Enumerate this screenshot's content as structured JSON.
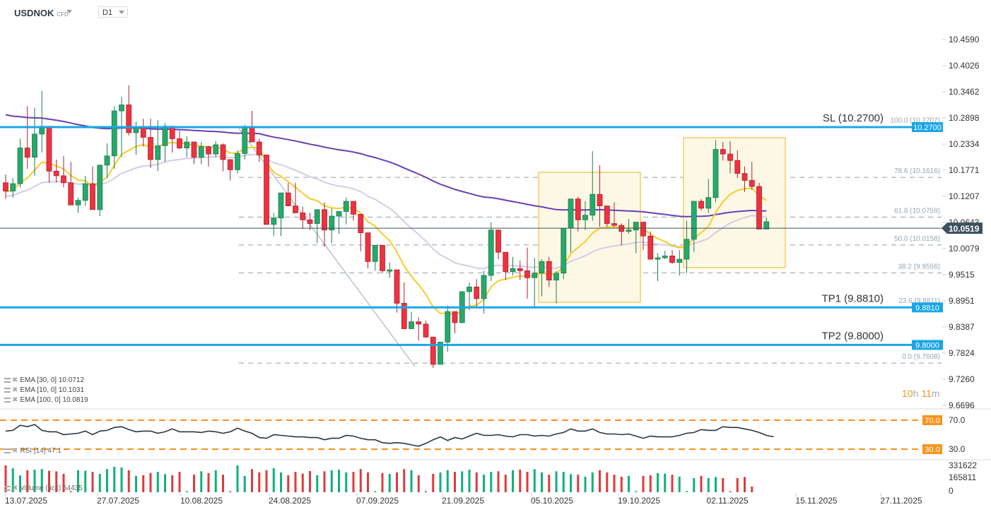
{
  "header": {
    "symbol": "USDNOK",
    "instrument_type": "CFD",
    "timeframe": "D1"
  },
  "price_axis": {
    "ticks": [
      "10.4590",
      "10.4026",
      "10.3462",
      "10.2898",
      "10.2334",
      "10.1771",
      "10.1207",
      "10.0643",
      "10.0079",
      "9.9515",
      "9.8951",
      "9.8387",
      "9.7824",
      "9.7260",
      "9.6696"
    ],
    "current_price": "10.0519"
  },
  "levels": {
    "sl": {
      "label": "SL (10.2700)",
      "tag": "10.2700",
      "value": 10.27
    },
    "tp1": {
      "label": "TP1 (9.8810)",
      "tag": "9.8810",
      "value": 9.881
    },
    "tp2": {
      "label": "TP2 (9.8000)",
      "tag": "9.8000",
      "value": 9.8
    }
  },
  "fibonacci": [
    {
      "label": "100.0 (10.2707)",
      "value": 10.2707
    },
    {
      "label": "78.6 (10.1616)",
      "value": 10.1616
    },
    {
      "label": "61.8 (10.0759)",
      "value": 10.0759
    },
    {
      "label": "50.0 (10.0158)",
      "value": 10.0158
    },
    {
      "label": "38.2 (9.9556)",
      "value": 9.9556
    },
    {
      "label": "23.6 (9.8811)",
      "value": 9.8811
    },
    {
      "label": "0.0 (9.7608)",
      "value": 9.7608
    }
  ],
  "indicators": {
    "ema30": "EMA [30, 0] 10.0712",
    "ema10": "EMA [10, 0] 10.1031",
    "ema100": "EMA [100, 0] 10.0819",
    "rsi": "RSI [14] 47.1",
    "volume": "Volume (tick) 54435"
  },
  "countdown": {
    "hours": "10",
    "h": "h",
    "minutes": "11",
    "m": "m"
  },
  "rsi_axis": {
    "upper": "70.0",
    "lower": "30.0"
  },
  "volume_axis": {
    "max": "331622",
    "mid": "165811",
    "zero": "0"
  },
  "date_axis": [
    "13.07.2025",
    "27.07.2025",
    "10.08.2025",
    "24.08.2025",
    "07.09.2025",
    "21.09.2025",
    "05.10.2025",
    "19.10.2025",
    "02.11.2025",
    "15.11.2025",
    "27.11.2025"
  ],
  "colors": {
    "bull": "#26a96c",
    "bear": "#f0313f",
    "ema10": "#f5cd2a",
    "ema30": "#d6cbe6",
    "ema100": "#6a3fb5",
    "level_line": "#1aa6e8",
    "rsi_band": "#f7931e",
    "price_tag": "#3d5260"
  },
  "chart_data": {
    "type": "candlestick",
    "title": "USDNOK CFD D1",
    "xlabel": "",
    "ylabel": "",
    "ylim": [
      9.6696,
      10.459
    ],
    "x_ticks": [
      "13.07.2025",
      "27.07.2025",
      "10.08.2025",
      "24.08.2025",
      "07.09.2025",
      "21.09.2025",
      "05.10.2025",
      "19.10.2025",
      "02.11.2025",
      "15.11.2025",
      "27.11.2025"
    ],
    "candles": [
      [
        10.15,
        10.168,
        10.115,
        10.132
      ],
      [
        10.132,
        10.16,
        10.118,
        10.148
      ],
      [
        10.148,
        10.245,
        10.14,
        10.225
      ],
      [
        10.225,
        10.315,
        10.18,
        10.205
      ],
      [
        10.205,
        10.312,
        10.165,
        10.255
      ],
      [
        10.255,
        10.348,
        10.215,
        10.272
      ],
      [
        10.272,
        10.235,
        10.15,
        10.175
      ],
      [
        10.175,
        10.2,
        10.15,
        10.165
      ],
      [
        10.165,
        10.208,
        10.14,
        10.15
      ],
      [
        10.15,
        10.195,
        10.115,
        10.102
      ],
      [
        10.102,
        10.118,
        10.085,
        10.112
      ],
      [
        10.112,
        10.165,
        10.1,
        10.148
      ],
      [
        10.148,
        10.185,
        10.098,
        10.092
      ],
      [
        10.092,
        10.165,
        10.078,
        10.188
      ],
      [
        10.188,
        10.235,
        10.16,
        10.208
      ],
      [
        10.208,
        10.315,
        10.18,
        10.305
      ],
      [
        10.305,
        10.335,
        10.205,
        10.318
      ],
      [
        10.318,
        10.36,
        10.252,
        10.258
      ],
      [
        10.258,
        10.282,
        10.21,
        10.268
      ],
      [
        10.268,
        10.288,
        10.228,
        10.248
      ],
      [
        10.248,
        10.288,
        10.182,
        10.2
      ],
      [
        10.2,
        10.285,
        10.175,
        10.23
      ],
      [
        10.23,
        10.278,
        10.195,
        10.272
      ],
      [
        10.272,
        10.268,
        10.215,
        10.245
      ],
      [
        10.245,
        10.262,
        10.222,
        10.225
      ],
      [
        10.225,
        10.25,
        10.205,
        10.238
      ],
      [
        10.238,
        10.235,
        10.19,
        10.205
      ],
      [
        10.205,
        10.238,
        10.19,
        10.228
      ],
      [
        10.228,
        10.23,
        10.185,
        10.212
      ],
      [
        10.212,
        10.24,
        10.205,
        10.232
      ],
      [
        10.232,
        10.235,
        10.175,
        10.2
      ],
      [
        10.2,
        10.175,
        10.155,
        10.178
      ],
      [
        10.178,
        10.22,
        10.17,
        10.213
      ],
      [
        10.213,
        10.275,
        10.2,
        10.27
      ],
      [
        10.27,
        10.305,
        10.25,
        10.238
      ],
      [
        10.238,
        10.245,
        10.195,
        10.21
      ],
      [
        10.21,
        10.185,
        10.075,
        10.06
      ],
      [
        10.06,
        10.085,
        10.035,
        10.074
      ],
      [
        10.074,
        10.128,
        10.035,
        10.128
      ],
      [
        10.128,
        10.15,
        10.1,
        10.1
      ],
      [
        10.1,
        10.15,
        10.095,
        10.085
      ],
      [
        10.085,
        10.098,
        10.05,
        10.07
      ],
      [
        10.07,
        10.085,
        10.048,
        10.062
      ],
      [
        10.062,
        10.085,
        10.02,
        10.092
      ],
      [
        10.092,
        10.108,
        10.012,
        10.048
      ],
      [
        10.048,
        10.095,
        10.02,
        10.078
      ],
      [
        10.078,
        10.085,
        10.04,
        10.088
      ],
      [
        10.088,
        10.118,
        10.06,
        10.11
      ],
      [
        10.11,
        10.11,
        10.068,
        10.082
      ],
      [
        10.082,
        10.042,
        10.002,
        10.042
      ],
      [
        10.042,
        10.022,
        9.965,
        9.98
      ],
      [
        9.98,
        10.015,
        9.96,
        10.015
      ],
      [
        10.015,
        9.998,
        9.955,
        9.96
      ],
      [
        9.96,
        9.978,
        9.945,
        9.962
      ],
      [
        9.962,
        9.935,
        9.87,
        9.89
      ],
      [
        9.89,
        9.935,
        9.835,
        9.835
      ],
      [
        9.835,
        9.872,
        9.84,
        9.85
      ],
      [
        9.85,
        9.86,
        9.81,
        9.845
      ],
      [
        9.845,
        9.852,
        9.815,
        9.817
      ],
      [
        9.817,
        9.8,
        9.75,
        9.758
      ],
      [
        9.758,
        9.805,
        9.76,
        9.806
      ],
      [
        9.806,
        9.885,
        9.785,
        9.872
      ],
      [
        9.872,
        9.86,
        9.825,
        9.848
      ],
      [
        9.848,
        9.915,
        9.862,
        9.915
      ],
      [
        9.915,
        9.935,
        9.875,
        9.925
      ],
      [
        9.925,
        9.942,
        9.88,
        9.9
      ],
      [
        9.9,
        9.96,
        9.868,
        9.95
      ],
      [
        9.95,
        10.065,
        9.938,
        10.048
      ],
      [
        10.048,
        10.03,
        9.985,
        10.0
      ],
      [
        10.0,
        9.988,
        9.94,
        9.958
      ],
      [
        9.958,
        9.99,
        9.95,
        9.965
      ],
      [
        9.965,
        9.982,
        9.94,
        9.96
      ],
      [
        9.96,
        10.01,
        9.9,
        9.945
      ],
      [
        9.945,
        9.988,
        9.88,
        9.955
      ],
      [
        9.955,
        9.985,
        9.905,
        9.98
      ],
      [
        9.98,
        9.99,
        9.925,
        9.94
      ],
      [
        9.94,
        9.96,
        9.89,
        9.955
      ],
      [
        9.955,
        10.035,
        9.942,
        10.052
      ],
      [
        10.052,
        10.115,
        10.0,
        10.115
      ],
      [
        10.115,
        10.12,
        10.045,
        10.07
      ],
      [
        10.07,
        10.11,
        10.048,
        10.08
      ],
      [
        10.08,
        10.218,
        10.068,
        10.125
      ],
      [
        10.125,
        10.188,
        10.055,
        10.1
      ],
      [
        10.1,
        10.08,
        10.055,
        10.062
      ],
      [
        10.062,
        10.108,
        10.055,
        10.058
      ],
      [
        10.058,
        10.062,
        10.015,
        10.045
      ],
      [
        10.045,
        10.072,
        10.04,
        10.048
      ],
      [
        10.048,
        10.055,
        9.998,
        10.065
      ],
      [
        10.065,
        10.05,
        10.005,
        10.035
      ],
      [
        10.035,
        10.045,
        10.0,
        9.985
      ],
      [
        9.985,
        9.998,
        9.938,
        9.988
      ],
      [
        9.988,
        10.003,
        9.985,
        9.992
      ],
      [
        9.992,
        10.005,
        9.975,
        9.978
      ],
      [
        9.978,
        10.005,
        9.95,
        9.985
      ],
      [
        9.985,
        10.068,
        9.955,
        10.028
      ],
      [
        10.028,
        10.11,
        10.0,
        10.11
      ],
      [
        10.11,
        10.115,
        10.09,
        10.095
      ],
      [
        10.095,
        10.158,
        10.085,
        10.118
      ],
      [
        10.118,
        10.242,
        10.108,
        10.222
      ],
      [
        10.222,
        10.238,
        10.198,
        10.212
      ],
      [
        10.212,
        10.24,
        10.17,
        10.198
      ],
      [
        10.198,
        10.22,
        10.16,
        10.17
      ],
      [
        10.17,
        10.185,
        10.13,
        10.155
      ],
      [
        10.155,
        10.195,
        10.135,
        10.142
      ],
      [
        10.142,
        10.15,
        10.05,
        10.05
      ],
      [
        10.05,
        10.075,
        10.055,
        10.066
      ]
    ],
    "series": [
      {
        "name": "EMA [10, 0]",
        "last": 10.1031
      },
      {
        "name": "EMA [30, 0]",
        "last": 10.0712
      },
      {
        "name": "EMA [100, 0]",
        "last": 10.0819
      },
      {
        "name": "RSI [14]",
        "last": 47.1,
        "levels": [
          70,
          30
        ]
      },
      {
        "name": "Volume (tick)",
        "last": 54435,
        "ylim": [
          0,
          331622
        ]
      }
    ],
    "horizontal_lines": [
      {
        "name": "SL",
        "value": 10.27
      },
      {
        "name": "TP1",
        "value": 9.881
      },
      {
        "name": "TP2",
        "value": 9.8
      }
    ],
    "fibonacci_retracement": {
      "high": 10.2707,
      "low": 9.7608,
      "levels": {
        "100.0": 10.2707,
        "78.6": 10.1616,
        "61.8": 10.0759,
        "50.0": 10.0158,
        "38.2": 9.9556,
        "23.6": 9.8811,
        "0.0": 9.7608
      }
    },
    "current_price": 10.0519,
    "grid": false,
    "legend_position": "bottom-left"
  }
}
